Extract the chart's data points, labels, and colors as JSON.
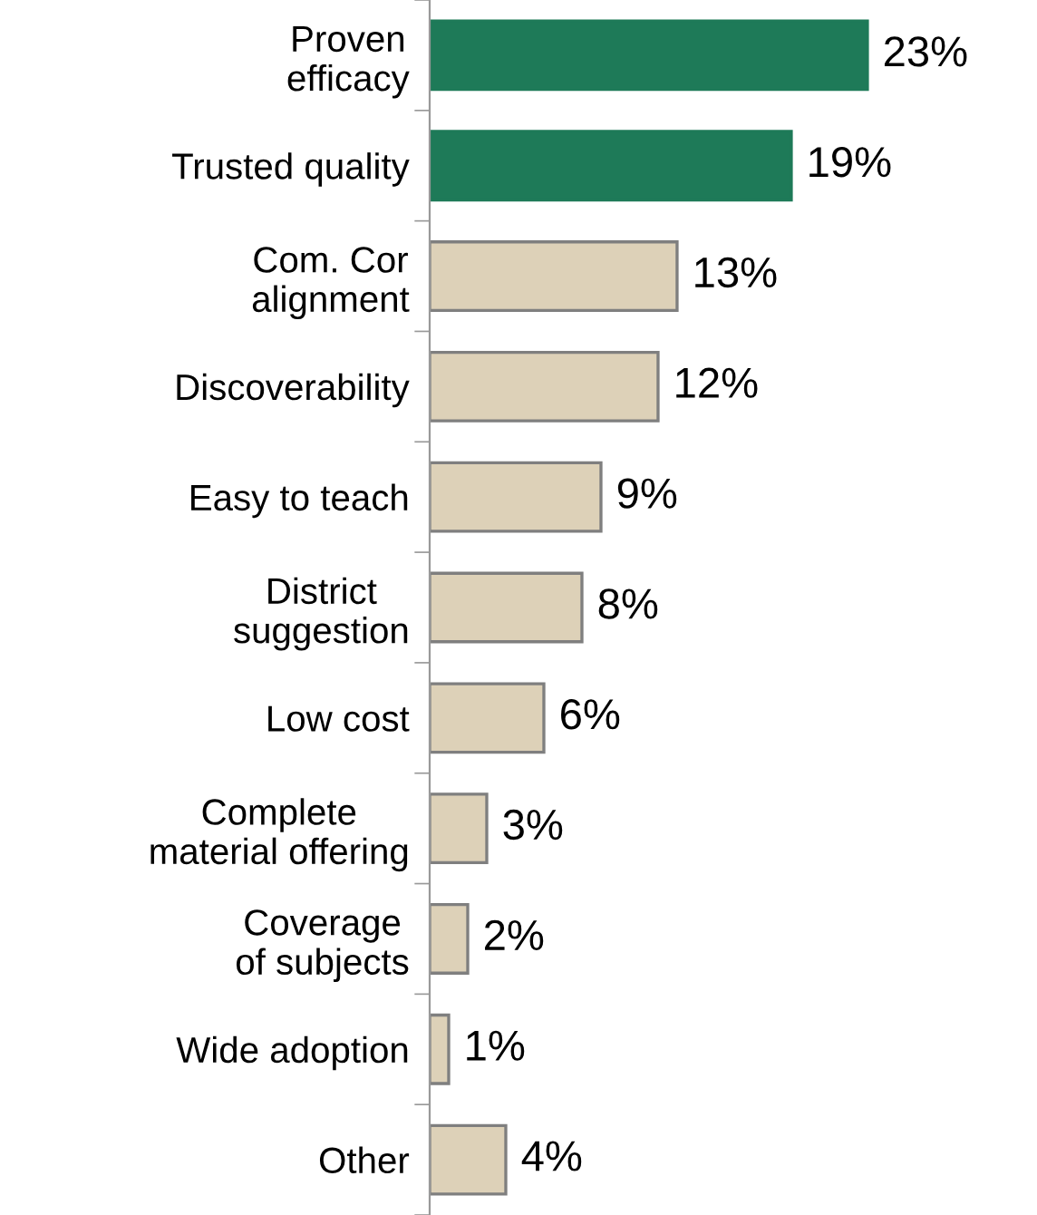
{
  "chart_data": {
    "type": "bar",
    "orientation": "horizontal",
    "categories": [
      "Proven\nefficacy",
      "Trusted quality",
      "Com. Cor\nalignment",
      "Discoverability",
      "Easy to teach",
      "District\nsuggestion",
      "Low cost",
      "Complete\nmaterial offering",
      "Coverage\nof subjects",
      "Wide adoption",
      "Other"
    ],
    "values": [
      23,
      19,
      13,
      12,
      9,
      8,
      6,
      3,
      2,
      1,
      4
    ],
    "colors": [
      "#1e7a58",
      "#1e7a58",
      "#ddd1b8",
      "#ddd1b8",
      "#ddd1b8",
      "#ddd1b8",
      "#ddd1b8",
      "#ddd1b8",
      "#ddd1b8",
      "#ddd1b8",
      "#ddd1b8"
    ],
    "value_labels": [
      "23%",
      "19%",
      "13%",
      "12%",
      "9%",
      "8%",
      "6%",
      "3%",
      "2%",
      "1%",
      "4%"
    ],
    "grid": false,
    "legend": false,
    "tick_labels": "y"
  }
}
